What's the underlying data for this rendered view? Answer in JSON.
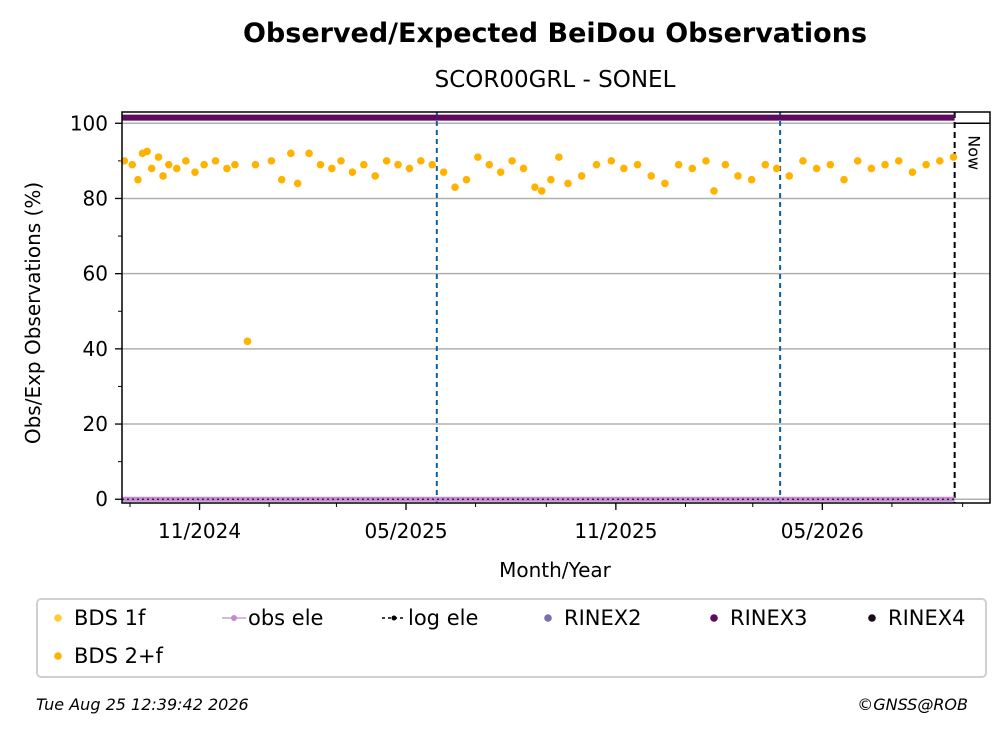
{
  "chart_data": {
    "type": "scatter",
    "title": "Observed/Expected BeiDou Observations",
    "subtitle": "SCOR00GRL - SONEL",
    "xlabel": "Month/Year",
    "ylabel": "Obs/Exp Observations (%)",
    "xlim": [
      "2024-08-25",
      "2026-09-25"
    ],
    "ylim": [
      -1,
      103
    ],
    "yticks": [
      0,
      20,
      40,
      60,
      80,
      100
    ],
    "xticks": [
      {
        "date": "2024-11-01",
        "label": "11/2024"
      },
      {
        "date": "2025-05-01",
        "label": "05/2025"
      },
      {
        "date": "2025-11-01",
        "label": "11/2025"
      },
      {
        "date": "2026-05-01",
        "label": "05/2026"
      }
    ],
    "grid": true,
    "now_date": "2026-08-25",
    "now_label": "Now",
    "event_lines": [
      "2025-05-28",
      "2026-03-25"
    ],
    "series": [
      {
        "name": "BDS 2+f",
        "color": "#ffb300",
        "points": [
          [
            "2024-08-27",
            90
          ],
          [
            "2024-09-03",
            89
          ],
          [
            "2024-09-08",
            85
          ],
          [
            "2024-09-12",
            92
          ],
          [
            "2024-09-16",
            92.5
          ],
          [
            "2024-09-20",
            88
          ],
          [
            "2024-09-26",
            91
          ],
          [
            "2024-09-30",
            86
          ],
          [
            "2024-10-05",
            89
          ],
          [
            "2024-10-12",
            88
          ],
          [
            "2024-10-20",
            90
          ],
          [
            "2024-10-28",
            87
          ],
          [
            "2024-11-05",
            89
          ],
          [
            "2024-11-15",
            90
          ],
          [
            "2024-11-25",
            88
          ],
          [
            "2024-12-02",
            89
          ],
          [
            "2024-12-13",
            42
          ],
          [
            "2024-12-20",
            89
          ],
          [
            "2025-01-03",
            90
          ],
          [
            "2025-01-12",
            85
          ],
          [
            "2025-01-20",
            92
          ],
          [
            "2025-01-26",
            84
          ],
          [
            "2025-02-05",
            92
          ],
          [
            "2025-02-15",
            89
          ],
          [
            "2025-02-25",
            88
          ],
          [
            "2025-03-05",
            90
          ],
          [
            "2025-03-15",
            87
          ],
          [
            "2025-03-25",
            89
          ],
          [
            "2025-04-04",
            86
          ],
          [
            "2025-04-14",
            90
          ],
          [
            "2025-04-24",
            89
          ],
          [
            "2025-05-04",
            88
          ],
          [
            "2025-05-14",
            90
          ],
          [
            "2025-05-24",
            89
          ],
          [
            "2025-06-03",
            87
          ],
          [
            "2025-06-13",
            83
          ],
          [
            "2025-06-23",
            85
          ],
          [
            "2025-07-03",
            91
          ],
          [
            "2025-07-13",
            89
          ],
          [
            "2025-07-23",
            87
          ],
          [
            "2025-08-02",
            90
          ],
          [
            "2025-08-12",
            88
          ],
          [
            "2025-08-22",
            83
          ],
          [
            "2025-08-28",
            82
          ],
          [
            "2025-09-05",
            85
          ],
          [
            "2025-09-12",
            91
          ],
          [
            "2025-09-20",
            84
          ],
          [
            "2025-10-02",
            86
          ],
          [
            "2025-10-15",
            89
          ],
          [
            "2025-10-28",
            90
          ],
          [
            "2025-11-08",
            88
          ],
          [
            "2025-11-20",
            89
          ],
          [
            "2025-12-02",
            86
          ],
          [
            "2025-12-14",
            84
          ],
          [
            "2025-12-26",
            89
          ],
          [
            "2026-01-07",
            88
          ],
          [
            "2026-01-19",
            90
          ],
          [
            "2026-01-26",
            82
          ],
          [
            "2026-02-05",
            89
          ],
          [
            "2026-02-16",
            86
          ],
          [
            "2026-02-28",
            85
          ],
          [
            "2026-03-12",
            89
          ],
          [
            "2026-03-22",
            88
          ],
          [
            "2026-04-02",
            86
          ],
          [
            "2026-04-14",
            90
          ],
          [
            "2026-04-26",
            88
          ],
          [
            "2026-05-08",
            89
          ],
          [
            "2026-05-20",
            85
          ],
          [
            "2026-06-01",
            90
          ],
          [
            "2026-06-13",
            88
          ],
          [
            "2026-06-25",
            89
          ],
          [
            "2026-07-07",
            90
          ],
          [
            "2026-07-19",
            87
          ],
          [
            "2026-07-31",
            89
          ],
          [
            "2026-08-12",
            90
          ],
          [
            "2026-08-24",
            91
          ]
        ]
      },
      {
        "name": "RINEX3",
        "color": "#5e0a5e",
        "y": 101.5,
        "from": "2024-08-25",
        "to": "2026-08-25"
      },
      {
        "name": "obs ele",
        "color": "#c38bcf",
        "y": 0,
        "from": "2024-08-25",
        "to": "2026-08-25"
      }
    ],
    "legend": {
      "placement": "bottom",
      "items": [
        {
          "label": "BDS 1f",
          "marker": "dot",
          "color": "#ffcc33"
        },
        {
          "label": "obs ele",
          "marker": "line-dot",
          "color": "#c38bcf"
        },
        {
          "label": "log ele",
          "marker": "dash-dot",
          "color": "#000000"
        },
        {
          "label": "RINEX2",
          "marker": "dot",
          "color": "#7b6fb3"
        },
        {
          "label": "RINEX3",
          "marker": "dot",
          "color": "#5e0a5e"
        },
        {
          "label": "RINEX4",
          "marker": "dot",
          "color": "#1a0a1a"
        },
        {
          "label": "BDS 2+f",
          "marker": "dot",
          "color": "#ffb300"
        }
      ]
    }
  },
  "footer": {
    "timestamp": "Tue Aug 25 12:39:42 2026",
    "credit": "©GNSS@ROB"
  }
}
